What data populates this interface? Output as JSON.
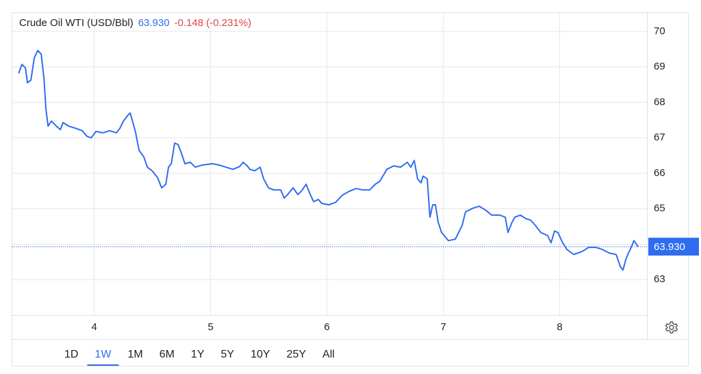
{
  "chart_data": {
    "type": "line",
    "title": "Crude Oil WTI (USD/Bbl)",
    "last_price": {
      "value": 63.93,
      "label": "63.930"
    },
    "change": "-0.148 (-0.231%)",
    "x": [
      3.35,
      3.379,
      3.409,
      3.426,
      3.456,
      3.485,
      3.515,
      3.544,
      3.568,
      3.585,
      3.603,
      3.632,
      3.674,
      3.709,
      3.732,
      3.779,
      3.838,
      3.897,
      3.938,
      3.974,
      4.015,
      4.074,
      4.132,
      4.191,
      4.221,
      4.25,
      4.285,
      4.309,
      4.332,
      4.356,
      4.385,
      4.426,
      4.456,
      4.497,
      4.544,
      4.579,
      4.615,
      4.638,
      4.662,
      4.691,
      4.721,
      4.75,
      4.779,
      4.826,
      4.868,
      4.926,
      5.015,
      5.074,
      5.132,
      5.191,
      5.25,
      5.279,
      5.309,
      5.338,
      5.379,
      5.426,
      5.456,
      5.497,
      5.544,
      5.603,
      5.632,
      5.662,
      5.709,
      5.75,
      5.779,
      5.821,
      5.85,
      5.885,
      5.926,
      5.956,
      6.015,
      6.074,
      6.132,
      6.191,
      6.25,
      6.309,
      6.368,
      6.415,
      6.456,
      6.515,
      6.574,
      6.632,
      6.691,
      6.721,
      6.75,
      6.779,
      6.809,
      6.826,
      6.862,
      6.885,
      6.909,
      6.932,
      6.956,
      6.985,
      7.044,
      7.103,
      7.162,
      7.191,
      7.25,
      7.309,
      7.368,
      7.415,
      7.485,
      7.532,
      7.556,
      7.591,
      7.615,
      7.662,
      7.709,
      7.75,
      7.791,
      7.838,
      7.897,
      7.926,
      7.956,
      7.985,
      8.026,
      8.062,
      8.121,
      8.191,
      8.25,
      8.309,
      8.368,
      8.426,
      8.485,
      8.521,
      8.544,
      8.568,
      8.591,
      8.615,
      8.638,
      8.674
    ],
    "series": [
      {
        "color": "#2f6cf0",
        "values": [
          68.82,
          69.07,
          68.97,
          68.55,
          68.63,
          69.26,
          69.46,
          69.36,
          68.68,
          67.81,
          67.33,
          67.47,
          67.33,
          67.23,
          67.43,
          67.33,
          67.27,
          67.2,
          67.04,
          67.0,
          67.18,
          67.14,
          67.2,
          67.14,
          67.27,
          67.47,
          67.62,
          67.7,
          67.43,
          67.14,
          66.65,
          66.46,
          66.17,
          66.07,
          65.88,
          65.59,
          65.69,
          66.17,
          66.27,
          66.85,
          66.81,
          66.56,
          66.27,
          66.31,
          66.17,
          66.23,
          66.27,
          66.23,
          66.17,
          66.11,
          66.19,
          66.31,
          66.23,
          66.11,
          66.07,
          66.17,
          65.84,
          65.59,
          65.53,
          65.53,
          65.3,
          65.4,
          65.59,
          65.4,
          65.49,
          65.69,
          65.45,
          65.2,
          65.26,
          65.15,
          65.11,
          65.18,
          65.38,
          65.49,
          65.57,
          65.53,
          65.53,
          65.69,
          65.78,
          66.11,
          66.21,
          66.17,
          66.31,
          66.17,
          66.36,
          65.84,
          65.73,
          65.92,
          65.84,
          64.76,
          65.11,
          65.11,
          64.62,
          64.33,
          64.1,
          64.14,
          64.53,
          64.91,
          65.01,
          65.07,
          64.95,
          64.82,
          64.82,
          64.76,
          64.33,
          64.62,
          64.76,
          64.82,
          64.72,
          64.68,
          64.53,
          64.33,
          64.24,
          64.04,
          64.37,
          64.33,
          64.04,
          63.85,
          63.71,
          63.79,
          63.91,
          63.91,
          63.85,
          63.75,
          63.71,
          63.37,
          63.27,
          63.56,
          63.75,
          63.91,
          64.1,
          63.93
        ]
      }
    ],
    "xlim": [
      3.29,
      8.75
    ],
    "xticks": [
      4,
      5,
      6,
      7,
      8
    ],
    "ylim": [
      62,
      70.5
    ],
    "yticks": [
      63,
      64,
      65,
      66,
      67,
      68,
      69,
      70
    ],
    "grid": true,
    "change_color": "#e04646"
  },
  "toolbar": {
    "ranges": [
      "1D",
      "1W",
      "1M",
      "6M",
      "1Y",
      "5Y",
      "10Y",
      "25Y",
      "All"
    ],
    "active": "1W"
  }
}
